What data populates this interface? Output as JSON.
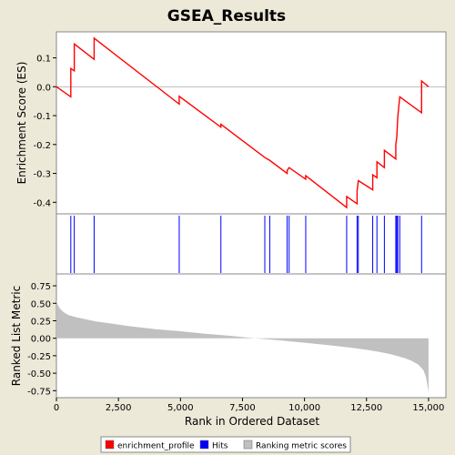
{
  "chart_data": {
    "type": "line",
    "title": "GSEA_Results",
    "xlabel": "Rank in Ordered Dataset",
    "xlim": [
      0,
      15700
    ],
    "xticks": [
      0,
      2500,
      5000,
      7500,
      10000,
      12500,
      15000
    ],
    "xtick_labels": [
      "0",
      "2,500",
      "5,000",
      "7,500",
      "10,000",
      "12,500",
      "15,000"
    ],
    "top": {
      "ylabel": "Enrichment Score (ES)",
      "ylim": [
        -0.44,
        0.19
      ],
      "yticks": [
        0.1,
        0.0,
        -0.1,
        -0.2,
        -0.3,
        -0.4
      ],
      "ytick_labels": [
        "0.1",
        "0.0",
        "-0.1",
        "-0.2",
        "-0.3",
        "-0.4"
      ],
      "series": {
        "name": "enrichment_profile",
        "color": "#FF0000",
        "x": [
          0,
          580,
          580,
          720,
          720,
          1520,
          1520,
          4950,
          4950,
          6630,
          6630,
          8400,
          8400,
          8600,
          8600,
          9300,
          9300,
          9380,
          9380,
          10050,
          10050,
          11700,
          11700,
          12120,
          12120,
          12170,
          12170,
          12750,
          12750,
          12920,
          12920,
          13220,
          13220,
          13680,
          13680,
          13720,
          13720,
          13760,
          13760,
          13840,
          13840,
          14720,
          14720,
          15000
        ],
        "y": [
          0.0,
          -0.035,
          0.063,
          0.055,
          0.148,
          0.095,
          0.168,
          -0.06,
          -0.033,
          -0.14,
          -0.13,
          -0.245,
          -0.245,
          -0.255,
          -0.255,
          -0.3,
          -0.29,
          -0.28,
          -0.28,
          -0.32,
          -0.308,
          -0.418,
          -0.38,
          -0.405,
          -0.36,
          -0.325,
          -0.325,
          -0.357,
          -0.305,
          -0.315,
          -0.26,
          -0.28,
          -0.22,
          -0.25,
          -0.2,
          -0.175,
          -0.175,
          -0.105,
          -0.105,
          -0.035,
          -0.035,
          -0.09,
          0.02,
          0.0
        ]
      }
    },
    "hits": {
      "name": "Hits",
      "color": "#0000FF",
      "positions": [
        580,
        720,
        1520,
        4950,
        6630,
        8400,
        8600,
        9300,
        9380,
        10050,
        11700,
        12120,
        12170,
        12750,
        12920,
        13220,
        13680,
        13720,
        13760,
        13840,
        14720
      ]
    },
    "bottom": {
      "ylabel": "Ranked List Metric",
      "ylim": [
        -0.85,
        0.92
      ],
      "yticks": [
        0.75,
        0.5,
        0.25,
        0.0,
        -0.25,
        -0.5,
        -0.75
      ],
      "ytick_labels": [
        "0.75",
        "0.50",
        "0.25",
        "0.00",
        "-0.25",
        "-0.50",
        "-0.75"
      ],
      "series": {
        "name": "Ranking metric scores",
        "color": "#C0C0C0",
        "x": [
          0,
          50,
          150,
          300,
          500,
          800,
          1200,
          1600,
          2000,
          3000,
          4000,
          5000,
          6000,
          7000,
          8000,
          9000,
          10000,
          11000,
          12000,
          12500,
          13000,
          13500,
          14000,
          14300,
          14600,
          14800,
          14900,
          14960,
          15000
        ],
        "y": [
          0.55,
          0.48,
          0.42,
          0.37,
          0.33,
          0.3,
          0.27,
          0.24,
          0.22,
          0.17,
          0.13,
          0.1,
          0.065,
          0.035,
          0.0,
          -0.03,
          -0.065,
          -0.1,
          -0.14,
          -0.165,
          -0.195,
          -0.23,
          -0.28,
          -0.32,
          -0.38,
          -0.46,
          -0.56,
          -0.68,
          -0.78
        ]
      }
    },
    "legend": {
      "placement": "bottom",
      "entries": [
        {
          "label": "enrichment_profile",
          "color": "#FF0000"
        },
        {
          "label": "Hits",
          "color": "#0000FF"
        },
        {
          "label": "Ranking metric scores",
          "color": "#C0C0C0"
        }
      ]
    }
  }
}
